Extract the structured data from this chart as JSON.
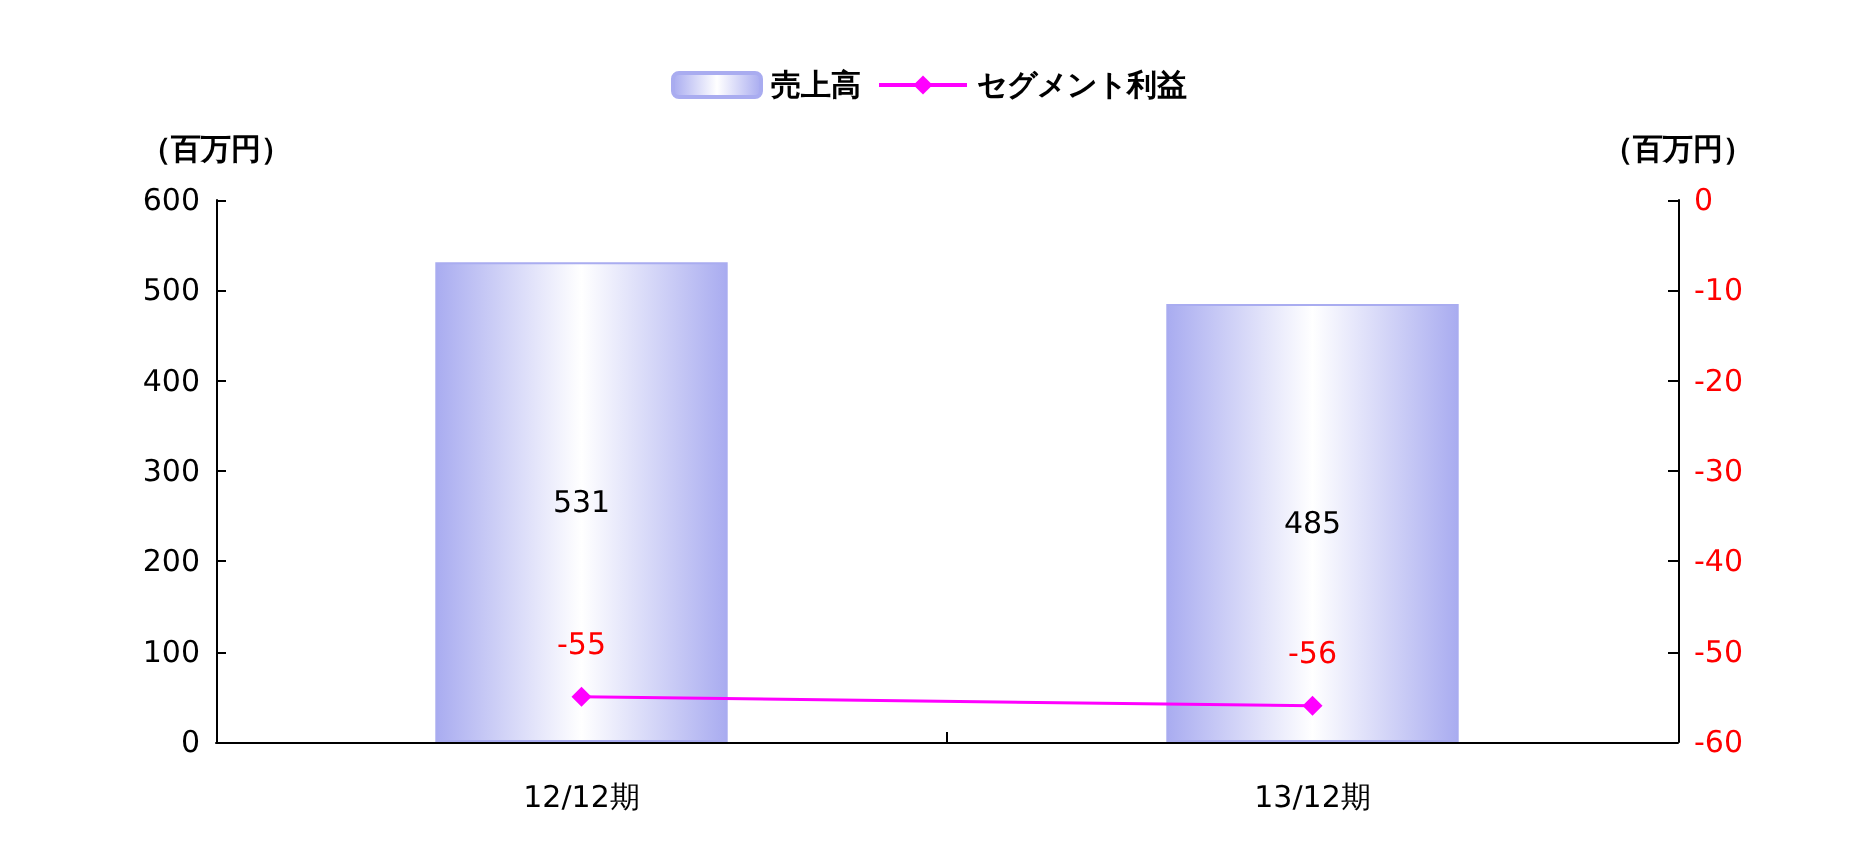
{
  "chart_data": {
    "type": "bar",
    "categories": [
      "12/12期",
      "13/12期"
    ],
    "series": [
      {
        "name": "売上高",
        "color": "#a9acf0",
        "values": [
          531,
          485
        ]
      },
      {
        "name": "セグメント利益",
        "type": "line",
        "axis": "y2",
        "color": "#ff00ff",
        "values": [
          -55,
          -56
        ],
        "marker": "diamond"
      }
    ],
    "ylabel": "（百万円）",
    "y2label": "（百万円）",
    "ylim": [
      0,
      600
    ],
    "yticks": [
      0,
      100,
      200,
      300,
      400,
      500,
      600
    ],
    "y2lim": [
      -60,
      0
    ],
    "y2ticks": [
      -60,
      -50,
      -40,
      -30,
      -20,
      -10,
      0
    ],
    "data_labels": true,
    "legend": "top",
    "grid": false
  }
}
